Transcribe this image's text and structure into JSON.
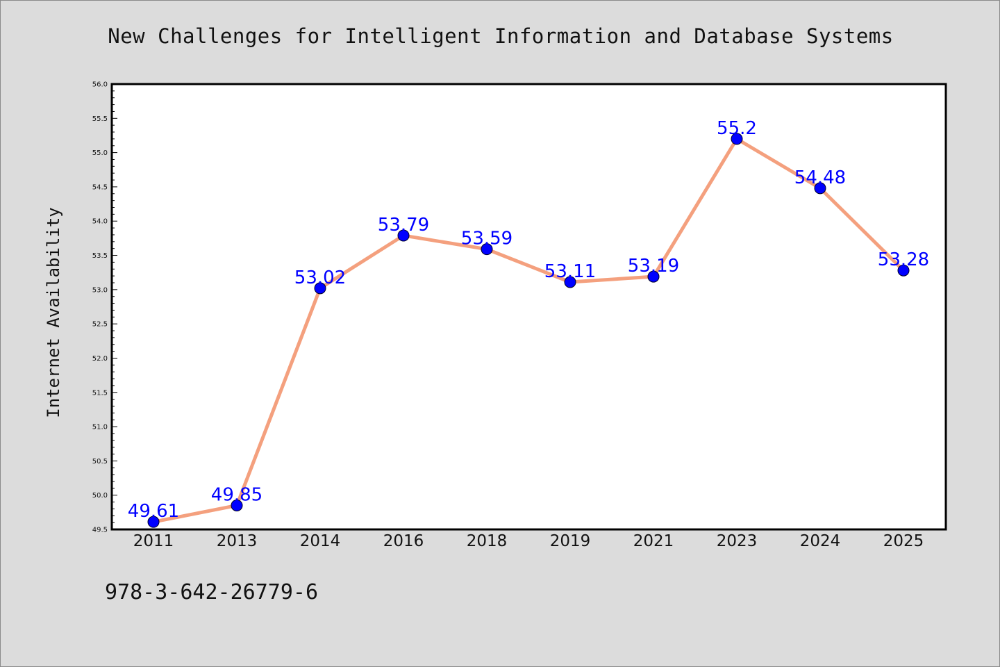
{
  "header": {
    "title": "New Challenges for Intelligent Information and Database Systems"
  },
  "footer": {
    "isbn": "978-3-642-26779-6"
  },
  "colors": {
    "page_background": "#dcdcdc",
    "plot_background": "#ffffff",
    "line": "#f4a07e",
    "marker": "#0000ff",
    "data_label": "#0000ff"
  },
  "chart_data": {
    "type": "line",
    "title": "New Challenges for Intelligent Information and Database Systems",
    "xlabel": "",
    "ylabel": "Internet Availability",
    "categories": [
      "2011",
      "2013",
      "2014",
      "2016",
      "2018",
      "2019",
      "2021",
      "2023",
      "2024",
      "2025"
    ],
    "series": [
      {
        "values": [
          49.61,
          49.85,
          53.02,
          53.79,
          53.59,
          53.11,
          53.19,
          55.2,
          54.48,
          53.28
        ],
        "data_labels": [
          "49.61",
          "49.85",
          "53.02",
          "53.79",
          "53.59",
          "53.11",
          "53.19",
          "55.2",
          "54.48",
          "53.28"
        ]
      }
    ],
    "ylim": [
      49.5,
      56.0
    ],
    "yticks": [
      "49.5",
      "50.0",
      "50.5",
      "51.0",
      "51.5",
      "52.0",
      "52.5",
      "53.0",
      "53.5",
      "54.0",
      "54.5",
      "55.0",
      "55.5",
      "56.0"
    ],
    "grid": false,
    "legend": "none"
  }
}
